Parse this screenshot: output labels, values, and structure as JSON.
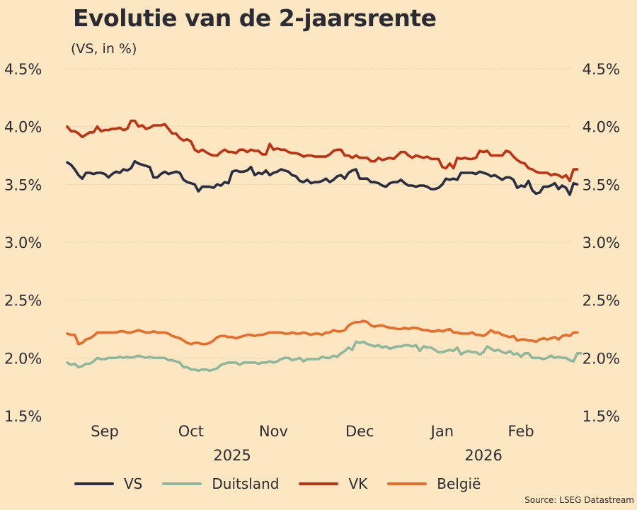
{
  "chart_data": {
    "type": "line",
    "title": "Evolutie van de 2-jaarsrente",
    "subtitle": "(VS, in %)",
    "ylim": [
      1.5,
      4.5
    ],
    "y_ticks": [
      "1.5%",
      "2.0%",
      "2.5%",
      "3.0%",
      "3.5%",
      "4.0%",
      "4.5%"
    ],
    "y_tick_values": [
      1.5,
      2.0,
      2.5,
      3.0,
      3.5,
      4.0,
      4.5
    ],
    "x_range": [
      0,
      134
    ],
    "month_labels": [
      "Sep",
      "Oct",
      "Nov",
      "Dec",
      "Jan",
      "Feb"
    ],
    "month_positions": [
      10,
      33,
      55,
      78,
      100,
      121
    ],
    "year_labels": [
      "2025",
      "2026"
    ],
    "year_positions": [
      44,
      111
    ],
    "grid": true,
    "legend_position": "bottom",
    "series": [
      {
        "name": "VS",
        "color": "#2b2d42",
        "values": [
          3.69,
          3.67,
          3.63,
          3.58,
          3.55,
          3.6,
          3.6,
          3.59,
          3.6,
          3.6,
          3.59,
          3.56,
          3.59,
          3.61,
          3.6,
          3.63,
          3.62,
          3.64,
          3.7,
          3.68,
          3.67,
          3.66,
          3.65,
          3.56,
          3.56,
          3.59,
          3.61,
          3.59,
          3.6,
          3.61,
          3.6,
          3.54,
          3.52,
          3.51,
          3.5,
          3.44,
          3.48,
          3.48,
          3.48,
          3.47,
          3.5,
          3.49,
          3.52,
          3.51,
          3.61,
          3.62,
          3.61,
          3.61,
          3.62,
          3.65,
          3.58,
          3.6,
          3.59,
          3.62,
          3.58,
          3.6,
          3.61,
          3.63,
          3.62,
          3.61,
          3.58,
          3.57,
          3.53,
          3.52,
          3.54,
          3.51,
          3.52,
          3.52,
          3.53,
          3.55,
          3.52,
          3.54,
          3.57,
          3.58,
          3.55,
          3.6,
          3.62,
          3.63,
          3.55,
          3.55,
          3.55,
          3.52,
          3.52,
          3.51,
          3.49,
          3.48,
          3.51,
          3.52,
          3.52,
          3.54,
          3.51,
          3.49,
          3.49,
          3.48,
          3.49,
          3.49,
          3.48,
          3.46,
          3.46,
          3.47,
          3.5,
          3.55,
          3.54,
          3.55,
          3.54,
          3.6,
          3.6,
          3.6,
          3.6,
          3.59,
          3.61,
          3.6,
          3.59,
          3.57,
          3.58,
          3.56,
          3.54,
          3.56,
          3.56,
          3.54,
          3.47,
          3.49,
          3.48,
          3.53,
          3.45,
          3.42,
          3.43,
          3.48,
          3.48,
          3.49,
          3.51,
          3.46,
          3.49,
          3.47,
          3.41,
          3.51,
          3.5
        ]
      },
      {
        "name": "Duitsland",
        "color": "#8fb79e",
        "values": [
          1.96,
          1.94,
          1.95,
          1.92,
          1.93,
          1.95,
          1.95,
          1.97,
          2.0,
          1.99,
          1.99,
          2.0,
          2.0,
          2.0,
          2.01,
          2.0,
          2.01,
          2.0,
          2.01,
          2.02,
          2.01,
          2.0,
          2.01,
          2.0,
          2.0,
          2.0,
          2.0,
          1.98,
          1.98,
          1.97,
          1.96,
          1.92,
          1.92,
          1.9,
          1.9,
          1.89,
          1.9,
          1.9,
          1.89,
          1.9,
          1.91,
          1.94,
          1.95,
          1.96,
          1.96,
          1.96,
          1.94,
          1.96,
          1.96,
          1.96,
          1.96,
          1.95,
          1.96,
          1.96,
          1.97,
          1.96,
          1.97,
          1.99,
          2.0,
          2.0,
          1.98,
          1.99,
          2.0,
          1.97,
          1.99,
          1.99,
          1.99,
          1.99,
          2.01,
          2.0,
          2.0,
          2.02,
          2.01,
          2.04,
          2.06,
          2.09,
          2.07,
          2.14,
          2.13,
          2.14,
          2.12,
          2.11,
          2.1,
          2.11,
          2.09,
          2.1,
          2.08,
          2.09,
          2.1,
          2.1,
          2.11,
          2.11,
          2.1,
          2.11,
          2.06,
          2.1,
          2.09,
          2.09,
          2.07,
          2.05,
          2.05,
          2.06,
          2.07,
          2.06,
          2.09,
          2.03,
          2.05,
          2.06,
          2.05,
          2.05,
          2.03,
          2.05,
          2.1,
          2.08,
          2.06,
          2.07,
          2.05,
          2.04,
          2.06,
          2.03,
          2.04,
          2.01,
          2.04,
          2.04,
          2.0,
          2.0,
          2.0,
          1.99,
          2.0,
          2.02,
          2.0,
          2.01,
          2.0,
          2.0,
          1.98,
          1.97,
          2.04,
          2.04
        ]
      },
      {
        "name": "VK",
        "color": "#be3214",
        "values": [
          4.0,
          3.96,
          3.96,
          3.94,
          3.91,
          3.93,
          3.95,
          3.95,
          4.0,
          3.96,
          3.97,
          3.97,
          3.98,
          3.98,
          3.99,
          3.97,
          3.98,
          4.05,
          4.05,
          4.0,
          4.01,
          3.98,
          3.99,
          4.01,
          4.01,
          4.01,
          4.02,
          3.98,
          3.94,
          3.94,
          3.9,
          3.88,
          3.89,
          3.87,
          3.8,
          3.78,
          3.8,
          3.78,
          3.76,
          3.75,
          3.75,
          3.78,
          3.8,
          3.78,
          3.78,
          3.77,
          3.8,
          3.8,
          3.78,
          3.8,
          3.79,
          3.79,
          3.76,
          3.76,
          3.85,
          3.8,
          3.81,
          3.8,
          3.8,
          3.78,
          3.77,
          3.77,
          3.76,
          3.74,
          3.75,
          3.75,
          3.74,
          3.74,
          3.74,
          3.74,
          3.76,
          3.79,
          3.8,
          3.8,
          3.75,
          3.75,
          3.73,
          3.75,
          3.73,
          3.73,
          3.73,
          3.7,
          3.7,
          3.73,
          3.71,
          3.72,
          3.73,
          3.72,
          3.75,
          3.78,
          3.78,
          3.75,
          3.73,
          3.75,
          3.74,
          3.73,
          3.74,
          3.72,
          3.72,
          3.72,
          3.65,
          3.64,
          3.68,
          3.64,
          3.73,
          3.72,
          3.73,
          3.72,
          3.72,
          3.73,
          3.79,
          3.78,
          3.79,
          3.75,
          3.75,
          3.75,
          3.75,
          3.79,
          3.78,
          3.74,
          3.71,
          3.69,
          3.68,
          3.64,
          3.63,
          3.61,
          3.6,
          3.6,
          3.6,
          3.58,
          3.59,
          3.58,
          3.56,
          3.58,
          3.53,
          3.63,
          3.63
        ]
      },
      {
        "name": "België",
        "color": "#e86c2c",
        "values": [
          2.21,
          2.2,
          2.2,
          2.12,
          2.13,
          2.16,
          2.17,
          2.19,
          2.22,
          2.22,
          2.22,
          2.22,
          2.22,
          2.22,
          2.23,
          2.23,
          2.22,
          2.22,
          2.23,
          2.24,
          2.23,
          2.22,
          2.22,
          2.23,
          2.22,
          2.22,
          2.22,
          2.21,
          2.19,
          2.18,
          2.17,
          2.15,
          2.13,
          2.12,
          2.13,
          2.13,
          2.12,
          2.12,
          2.13,
          2.15,
          2.18,
          2.19,
          2.19,
          2.18,
          2.18,
          2.17,
          2.18,
          2.19,
          2.2,
          2.2,
          2.19,
          2.2,
          2.2,
          2.21,
          2.22,
          2.22,
          2.22,
          2.22,
          2.21,
          2.21,
          2.22,
          2.21,
          2.21,
          2.22,
          2.21,
          2.2,
          2.21,
          2.21,
          2.2,
          2.22,
          2.22,
          2.24,
          2.23,
          2.23,
          2.24,
          2.28,
          2.3,
          2.31,
          2.31,
          2.32,
          2.31,
          2.28,
          2.27,
          2.28,
          2.28,
          2.27,
          2.26,
          2.26,
          2.25,
          2.25,
          2.26,
          2.25,
          2.26,
          2.26,
          2.25,
          2.24,
          2.24,
          2.23,
          2.23,
          2.24,
          2.23,
          2.24,
          2.25,
          2.22,
          2.22,
          2.21,
          2.21,
          2.21,
          2.22,
          2.2,
          2.2,
          2.19,
          2.21,
          2.24,
          2.22,
          2.22,
          2.2,
          2.19,
          2.18,
          2.19,
          2.15,
          2.16,
          2.16,
          2.15,
          2.15,
          2.14,
          2.16,
          2.17,
          2.16,
          2.17,
          2.18,
          2.16,
          2.19,
          2.2,
          2.19,
          2.22,
          2.22
        ]
      }
    ],
    "source": "Source: LSEG Datastream"
  }
}
